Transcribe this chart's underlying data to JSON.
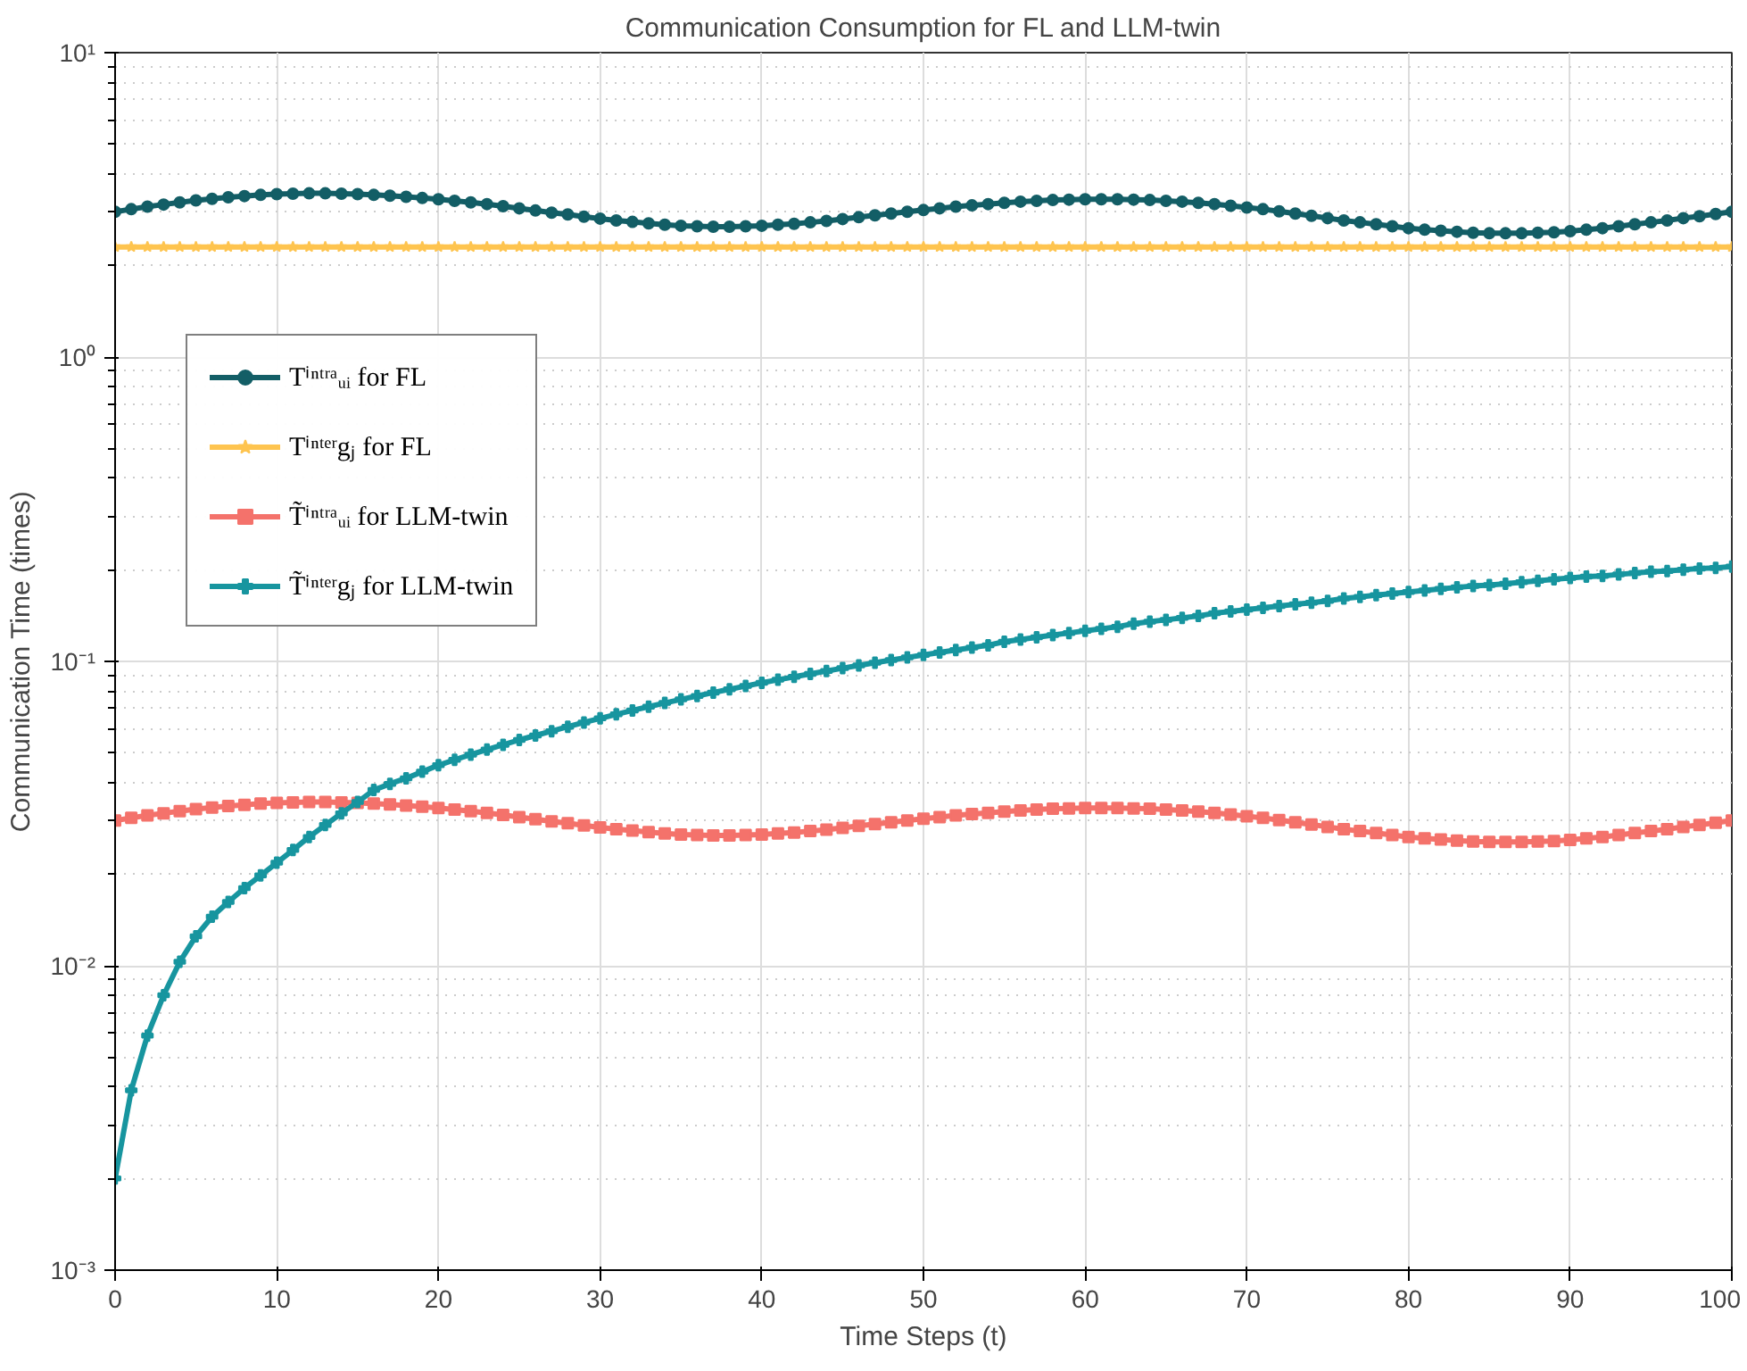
{
  "chart_data": {
    "type": "line",
    "title": "Communication Consumption for FL and LLM-twin",
    "xlabel": "Time Steps (t)",
    "ylabel": "Communication Time (times)",
    "x": [
      0,
      1,
      2,
      3,
      4,
      5,
      6,
      7,
      8,
      9,
      10,
      11,
      12,
      13,
      14,
      15,
      16,
      17,
      18,
      19,
      20,
      21,
      22,
      23,
      24,
      25,
      26,
      27,
      28,
      29,
      30,
      31,
      32,
      33,
      34,
      35,
      36,
      37,
      38,
      39,
      40,
      41,
      42,
      43,
      44,
      45,
      46,
      47,
      48,
      49,
      50,
      51,
      52,
      53,
      54,
      55,
      56,
      57,
      58,
      59,
      60,
      61,
      62,
      63,
      64,
      65,
      66,
      67,
      68,
      69,
      70,
      71,
      72,
      73,
      74,
      75,
      76,
      77,
      78,
      79,
      80,
      81,
      82,
      83,
      84,
      85,
      86,
      87,
      88,
      89,
      90,
      91,
      92,
      93,
      94,
      95,
      96,
      97,
      98,
      99,
      100
    ],
    "series": [
      {
        "name": "Tⁱⁿᵗʳᵃᵤᵢ for FL",
        "color": "#135e66",
        "marker": "circle",
        "values": [
          3.0,
          3.06,
          3.12,
          3.17,
          3.22,
          3.27,
          3.31,
          3.35,
          3.38,
          3.41,
          3.43,
          3.44,
          3.45,
          3.45,
          3.44,
          3.43,
          3.41,
          3.39,
          3.36,
          3.33,
          3.3,
          3.26,
          3.22,
          3.18,
          3.13,
          3.08,
          3.03,
          2.98,
          2.94,
          2.89,
          2.85,
          2.81,
          2.78,
          2.75,
          2.72,
          2.7,
          2.69,
          2.68,
          2.68,
          2.69,
          2.7,
          2.72,
          2.74,
          2.77,
          2.8,
          2.84,
          2.88,
          2.92,
          2.96,
          3.0,
          3.04,
          3.08,
          3.12,
          3.15,
          3.18,
          3.21,
          3.24,
          3.26,
          3.28,
          3.29,
          3.3,
          3.3,
          3.3,
          3.29,
          3.28,
          3.26,
          3.24,
          3.21,
          3.18,
          3.14,
          3.1,
          3.06,
          3.01,
          2.96,
          2.91,
          2.86,
          2.81,
          2.77,
          2.73,
          2.69,
          2.65,
          2.62,
          2.6,
          2.58,
          2.56,
          2.55,
          2.55,
          2.55,
          2.56,
          2.57,
          2.59,
          2.62,
          2.65,
          2.69,
          2.73,
          2.77,
          2.81,
          2.86,
          2.9,
          2.95,
          3.0
        ]
      },
      {
        "name": "Tⁱⁿᵗᵉʳgⱼ for FL",
        "color": "#fec44f",
        "marker": "star",
        "values": [
          2.3,
          2.3,
          2.3,
          2.3,
          2.3,
          2.3,
          2.3,
          2.3,
          2.3,
          2.3,
          2.3,
          2.3,
          2.3,
          2.3,
          2.3,
          2.3,
          2.3,
          2.3,
          2.3,
          2.3,
          2.3,
          2.3,
          2.3,
          2.3,
          2.3,
          2.3,
          2.3,
          2.3,
          2.3,
          2.3,
          2.3,
          2.3,
          2.3,
          2.3,
          2.3,
          2.3,
          2.3,
          2.3,
          2.3,
          2.3,
          2.3,
          2.3,
          2.3,
          2.3,
          2.3,
          2.3,
          2.3,
          2.3,
          2.3,
          2.3,
          2.3,
          2.3,
          2.3,
          2.3,
          2.3,
          2.3,
          2.3,
          2.3,
          2.3,
          2.3,
          2.3,
          2.3,
          2.3,
          2.3,
          2.3,
          2.3,
          2.3,
          2.3,
          2.3,
          2.3,
          2.3,
          2.3,
          2.3,
          2.3,
          2.3,
          2.3,
          2.3,
          2.3,
          2.3,
          2.3,
          2.3,
          2.3,
          2.3,
          2.3,
          2.3,
          2.3,
          2.3,
          2.3,
          2.3,
          2.3,
          2.3,
          2.3,
          2.3,
          2.3,
          2.3,
          2.3,
          2.3,
          2.3,
          2.3,
          2.3,
          2.3
        ]
      },
      {
        "name": "T̃ⁱⁿᵗʳᵃᵤᵢ for LLM-twin",
        "color": "#f4726b",
        "marker": "square",
        "values": [
          0.03,
          0.0306,
          0.0312,
          0.0317,
          0.0322,
          0.0327,
          0.0331,
          0.0335,
          0.0338,
          0.0341,
          0.0343,
          0.0344,
          0.0345,
          0.0345,
          0.0344,
          0.0343,
          0.0341,
          0.0339,
          0.0336,
          0.0333,
          0.033,
          0.0326,
          0.0322,
          0.0318,
          0.0313,
          0.0308,
          0.0303,
          0.0298,
          0.0294,
          0.0289,
          0.0285,
          0.0281,
          0.0278,
          0.0275,
          0.0272,
          0.027,
          0.0269,
          0.0268,
          0.0268,
          0.0269,
          0.027,
          0.0272,
          0.0274,
          0.0277,
          0.028,
          0.0284,
          0.0288,
          0.0292,
          0.0296,
          0.03,
          0.0304,
          0.0308,
          0.0312,
          0.0315,
          0.0318,
          0.0321,
          0.0324,
          0.0326,
          0.0328,
          0.0329,
          0.033,
          0.033,
          0.033,
          0.0329,
          0.0328,
          0.0326,
          0.0324,
          0.0321,
          0.0318,
          0.0314,
          0.031,
          0.0306,
          0.0301,
          0.0296,
          0.0291,
          0.0286,
          0.0281,
          0.0277,
          0.0273,
          0.0269,
          0.0265,
          0.0262,
          0.026,
          0.0258,
          0.0256,
          0.0255,
          0.0255,
          0.0255,
          0.0256,
          0.0257,
          0.0259,
          0.0262,
          0.0265,
          0.0269,
          0.0273,
          0.0277,
          0.0281,
          0.0286,
          0.029,
          0.0295,
          0.03
        ]
      },
      {
        "name": "T̃ⁱⁿᵗᵉʳgⱼ for LLM-twin",
        "color": "#17959f",
        "marker": "cross",
        "values": [
          0.002,
          0.0039,
          0.0059,
          0.008,
          0.0103,
          0.0125,
          0.0145,
          0.0162,
          0.018,
          0.0198,
          0.0218,
          0.024,
          0.0265,
          0.029,
          0.0317,
          0.0345,
          0.0378,
          0.0396,
          0.0413,
          0.0434,
          0.0456,
          0.0475,
          0.0494,
          0.0513,
          0.0532,
          0.0552,
          0.0571,
          0.059,
          0.061,
          0.063,
          0.065,
          0.067,
          0.069,
          0.071,
          0.073,
          0.075,
          0.077,
          0.079,
          0.081,
          0.083,
          0.085,
          0.087,
          0.089,
          0.091,
          0.093,
          0.095,
          0.097,
          0.099,
          0.101,
          0.103,
          0.105,
          0.107,
          0.109,
          0.111,
          0.113,
          0.116,
          0.118,
          0.12,
          0.122,
          0.124,
          0.126,
          0.128,
          0.13,
          0.133,
          0.135,
          0.137,
          0.139,
          0.141,
          0.144,
          0.146,
          0.148,
          0.15,
          0.152,
          0.154,
          0.156,
          0.158,
          0.161,
          0.163,
          0.165,
          0.167,
          0.169,
          0.171,
          0.173,
          0.175,
          0.177,
          0.178,
          0.18,
          0.182,
          0.184,
          0.186,
          0.188,
          0.19,
          0.191,
          0.193,
          0.195,
          0.197,
          0.198,
          0.2,
          0.202,
          0.203,
          0.205
        ]
      }
    ],
    "log": "y",
    "xlim": [
      0,
      100
    ],
    "xticks": [
      0,
      10,
      20,
      30,
      40,
      50,
      60,
      70,
      80,
      90,
      100
    ],
    "ylim": [
      0.001,
      10
    ],
    "yticks": [
      {
        "value": 0.001,
        "label": "10⁻³"
      },
      {
        "value": 0.01,
        "label": "10⁻²"
      },
      {
        "value": 0.1,
        "label": "10⁻¹"
      },
      {
        "value": 1,
        "label": "10⁰"
      },
      {
        "value": 10,
        "label": "10¹"
      }
    ],
    "grid": true,
    "legend": "top left",
    "line_style": "solid"
  }
}
